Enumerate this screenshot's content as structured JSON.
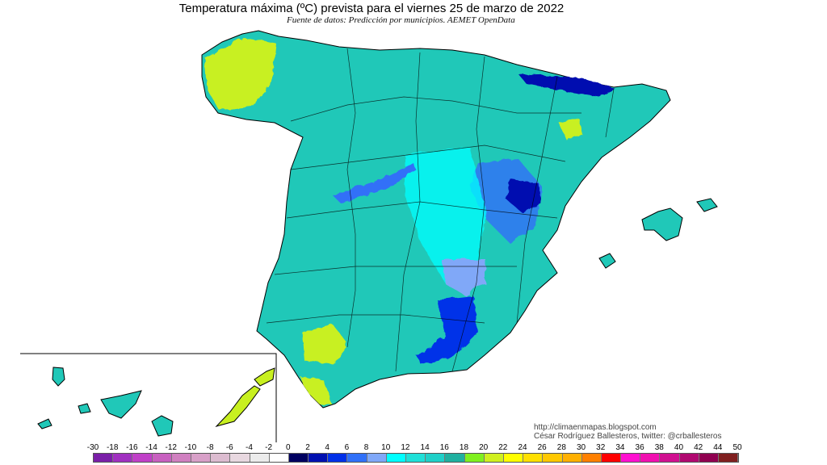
{
  "header": {
    "title": "Temperatura máxima (ºC) prevista para el viernes 25 de marzo de 2022",
    "subtitle": "Fuente de datos: Predicción por municipios. AEMET OpenData"
  },
  "map": {
    "region": "Spain (peninsula, Balearic and Canary Islands inset)",
    "variable": "maximum temperature",
    "units": "ºC",
    "colors": {
      "dominant": "#20c8b8",
      "cold": "#0030e8",
      "coldest": "#000080",
      "warm": "#c8f020",
      "light": "#00ffff",
      "mid": "#80a8f8",
      "border": "#000000"
    }
  },
  "legend": {
    "ticks": [
      "-30",
      "-18",
      "-16",
      "-14",
      "-12",
      "-10",
      "-8",
      "-6",
      "-4",
      "-2",
      "0",
      "2",
      "4",
      "6",
      "8",
      "10",
      "12",
      "14",
      "16",
      "18",
      "20",
      "22",
      "24",
      "26",
      "28",
      "30",
      "32",
      "34",
      "36",
      "38",
      "40",
      "42",
      "44",
      "50"
    ],
    "colors": [
      "#7a1fa8",
      "#a030c0",
      "#c040c8",
      "#c860c0",
      "#d080c0",
      "#d8a0c8",
      "#dcbcd0",
      "#e8d8e0",
      "#ececec",
      "#ffffff",
      "#000060",
      "#0010b0",
      "#0030e8",
      "#3070f8",
      "#80a8f8",
      "#00ffff",
      "#20e0d8",
      "#20d0c8",
      "#20b0a0",
      "#80f020",
      "#d0f020",
      "#ffff00",
      "#ffe000",
      "#ffc800",
      "#ffb000",
      "#ff8000",
      "#ff0000",
      "#ff10d0",
      "#f010b0",
      "#d01090",
      "#b00870",
      "#900050",
      "#802020"
    ]
  },
  "credits": {
    "url": "http://climaenmapas.blogspot.com",
    "author": "César Rodríguez Ballesteros, twitter: @crballesteros"
  }
}
